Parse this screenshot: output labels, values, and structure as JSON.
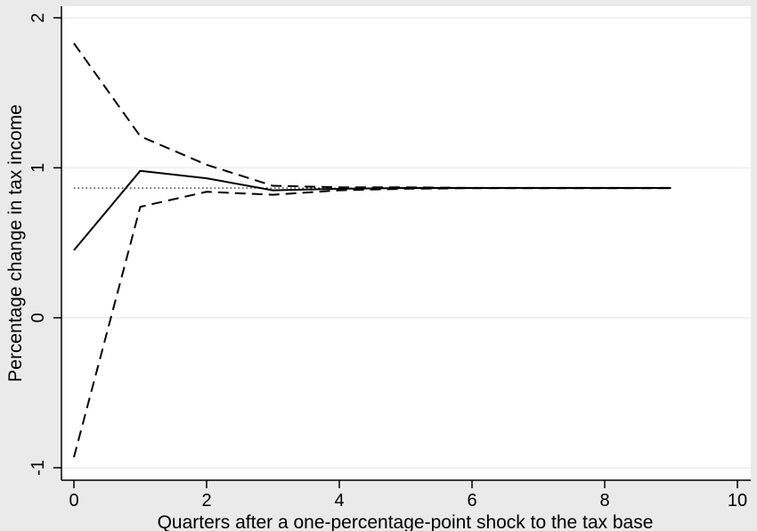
{
  "chart_data": {
    "type": "line",
    "title": "",
    "xlabel": "Quarters after a one-percentage-point shock to the tax base",
    "ylabel": "Percentage change in tax income",
    "xlim": [
      0,
      10
    ],
    "ylim": [
      -1,
      2
    ],
    "xticks": [
      0,
      2,
      4,
      6,
      8,
      10
    ],
    "yticks": [
      -1,
      0,
      1,
      2
    ],
    "grid": "horizontal",
    "legend": "none",
    "colors": {
      "background": "#eaeaea",
      "plot_area": "#ffffff",
      "grid": "#e8eef0",
      "line": "#000000"
    },
    "x": [
      0,
      1,
      2,
      3,
      4,
      5,
      6,
      7,
      8,
      9
    ],
    "series": [
      {
        "style": "solid",
        "values": [
          0.45,
          0.98,
          0.93,
          0.85,
          0.86,
          0.865,
          0.865,
          0.865,
          0.865,
          0.865
        ]
      },
      {
        "style": "dashed",
        "values": [
          1.83,
          1.21,
          1.02,
          0.88,
          0.87,
          0.87,
          0.866,
          0.866,
          0.866,
          0.866
        ]
      },
      {
        "style": "dashed",
        "values": [
          -0.93,
          0.74,
          0.84,
          0.82,
          0.85,
          0.86,
          0.864,
          0.864,
          0.864,
          0.864
        ]
      }
    ],
    "reference_line": {
      "style": "dotted",
      "y": 0.865,
      "x_range": [
        0,
        9
      ]
    }
  }
}
